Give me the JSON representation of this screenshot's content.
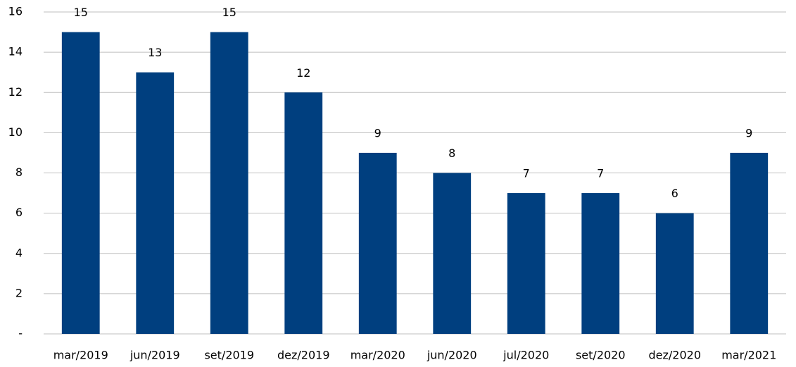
{
  "chart_data": {
    "type": "bar",
    "categories": [
      "mar/2019",
      "jun/2019",
      "set/2019",
      "dez/2019",
      "mar/2020",
      "jun/2020",
      "jul/2020",
      "set/2020",
      "dez/2020",
      "mar/2021"
    ],
    "values": [
      15,
      13,
      15,
      12,
      9,
      8,
      7,
      7,
      6,
      9
    ],
    "color": "#003f7f",
    "ylim": [
      0,
      16
    ],
    "yticks": [
      {
        "value": 0,
        "label": "-"
      },
      2,
      4,
      6,
      8,
      10,
      12,
      14,
      16
    ],
    "grid": true
  }
}
